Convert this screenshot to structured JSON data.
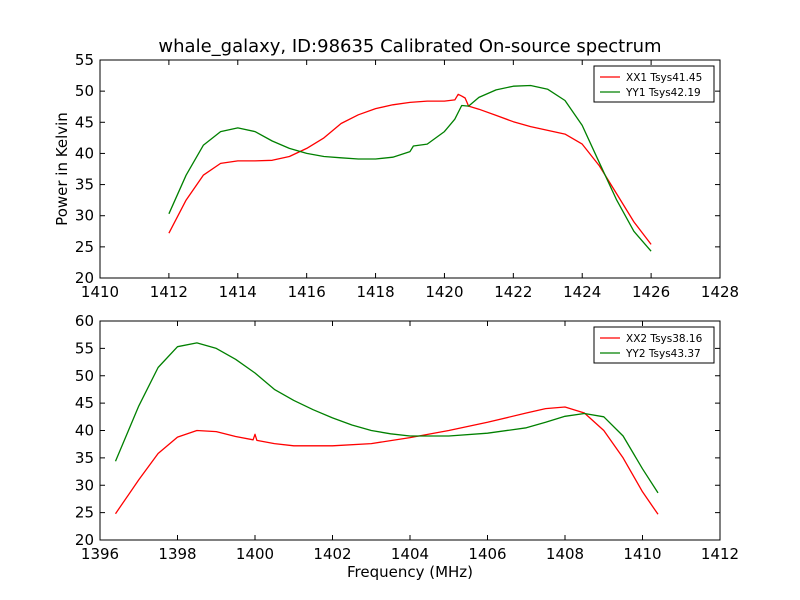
{
  "title": "whale_galaxy, ID:98635 Calibrated On-source spectrum",
  "chart_data": [
    {
      "type": "line",
      "xlabel": "",
      "ylabel": "Power in Kelvin",
      "xlim": [
        1410,
        1428
      ],
      "ylim": [
        20,
        55
      ],
      "xticks": [
        1410,
        1412,
        1414,
        1416,
        1418,
        1420,
        1422,
        1424,
        1426,
        1428
      ],
      "yticks": [
        20,
        25,
        30,
        35,
        40,
        45,
        50,
        55
      ],
      "grid": false,
      "legend_position": "top-right",
      "series": [
        {
          "name": "XX1 Tsys41.45",
          "color": "#ff0000",
          "x": [
            1412.0,
            1412.5,
            1413.0,
            1413.5,
            1414.0,
            1414.5,
            1415.0,
            1415.5,
            1416.0,
            1416.5,
            1417.0,
            1417.5,
            1418.0,
            1418.5,
            1419.0,
            1419.5,
            1420.0,
            1420.3,
            1420.4,
            1420.5,
            1420.6,
            1420.7,
            1421.0,
            1421.5,
            1422.0,
            1422.5,
            1423.0,
            1423.5,
            1424.0,
            1424.5,
            1425.0,
            1425.5,
            1426.0
          ],
          "y": [
            27.2,
            32.5,
            36.5,
            38.4,
            38.8,
            38.8,
            38.9,
            39.5,
            40.8,
            42.5,
            44.8,
            46.2,
            47.2,
            47.8,
            48.2,
            48.4,
            48.4,
            48.6,
            49.5,
            49.2,
            48.9,
            47.6,
            47.1,
            46.1,
            45.1,
            44.3,
            43.7,
            43.1,
            41.5,
            38.0,
            33.5,
            29.0,
            25.4
          ]
        },
        {
          "name": "YY1 Tsys42.19",
          "color": "#008000",
          "x": [
            1412.0,
            1412.5,
            1413.0,
            1413.5,
            1414.0,
            1414.5,
            1415.0,
            1415.5,
            1416.0,
            1416.5,
            1417.0,
            1417.5,
            1418.0,
            1418.5,
            1419.0,
            1419.1,
            1419.5,
            1420.0,
            1420.3,
            1420.5,
            1420.7,
            1421.0,
            1421.5,
            1422.0,
            1422.5,
            1423.0,
            1423.5,
            1424.0,
            1424.5,
            1425.0,
            1425.5,
            1426.0
          ],
          "y": [
            30.3,
            36.5,
            41.3,
            43.5,
            44.1,
            43.5,
            42.0,
            40.8,
            40.0,
            39.5,
            39.3,
            39.1,
            39.1,
            39.4,
            40.3,
            41.2,
            41.5,
            43.5,
            45.5,
            47.7,
            47.6,
            49.0,
            50.2,
            50.8,
            50.9,
            50.3,
            48.5,
            44.5,
            38.5,
            32.5,
            27.5,
            24.3
          ]
        }
      ]
    },
    {
      "type": "line",
      "xlabel": "Frequency (MHz)",
      "ylabel": "",
      "xlim": [
        1396,
        1412
      ],
      "ylim": [
        20,
        60
      ],
      "xticks": [
        1396,
        1398,
        1400,
        1402,
        1404,
        1406,
        1408,
        1410,
        1412
      ],
      "yticks": [
        20,
        25,
        30,
        35,
        40,
        45,
        50,
        55,
        60
      ],
      "grid": false,
      "legend_position": "top-right",
      "series": [
        {
          "name": "XX2 Tsys38.16",
          "color": "#ff0000",
          "x": [
            1396.4,
            1397.0,
            1397.5,
            1398.0,
            1398.5,
            1399.0,
            1399.5,
            1399.95,
            1400.0,
            1400.05,
            1400.5,
            1401.0,
            1402.0,
            1403.0,
            1404.0,
            1405.0,
            1406.0,
            1407.0,
            1407.5,
            1408.0,
            1408.5,
            1409.0,
            1409.5,
            1410.0,
            1410.4
          ],
          "y": [
            24.8,
            31.0,
            35.8,
            38.8,
            40.0,
            39.8,
            38.9,
            38.3,
            39.3,
            38.2,
            37.6,
            37.2,
            37.2,
            37.6,
            38.7,
            40.0,
            41.5,
            43.2,
            44.0,
            44.3,
            43.2,
            40.0,
            35.0,
            28.8,
            24.7
          ]
        },
        {
          "name": "YY2 Tsys43.37",
          "color": "#008000",
          "x": [
            1396.4,
            1397.0,
            1397.5,
            1398.0,
            1398.5,
            1399.0,
            1399.5,
            1400.0,
            1400.5,
            1401.0,
            1401.5,
            1402.0,
            1402.5,
            1403.0,
            1403.5,
            1404.0,
            1405.0,
            1406.0,
            1407.0,
            1407.5,
            1408.0,
            1408.5,
            1409.0,
            1409.5,
            1410.0,
            1410.4
          ],
          "y": [
            34.4,
            44.5,
            51.5,
            55.3,
            56.0,
            55.0,
            53.0,
            50.5,
            47.5,
            45.5,
            43.8,
            42.3,
            41.0,
            40.0,
            39.4,
            39.0,
            39.0,
            39.5,
            40.5,
            41.5,
            42.6,
            43.1,
            42.5,
            39.0,
            33.0,
            28.6
          ]
        }
      ]
    }
  ]
}
